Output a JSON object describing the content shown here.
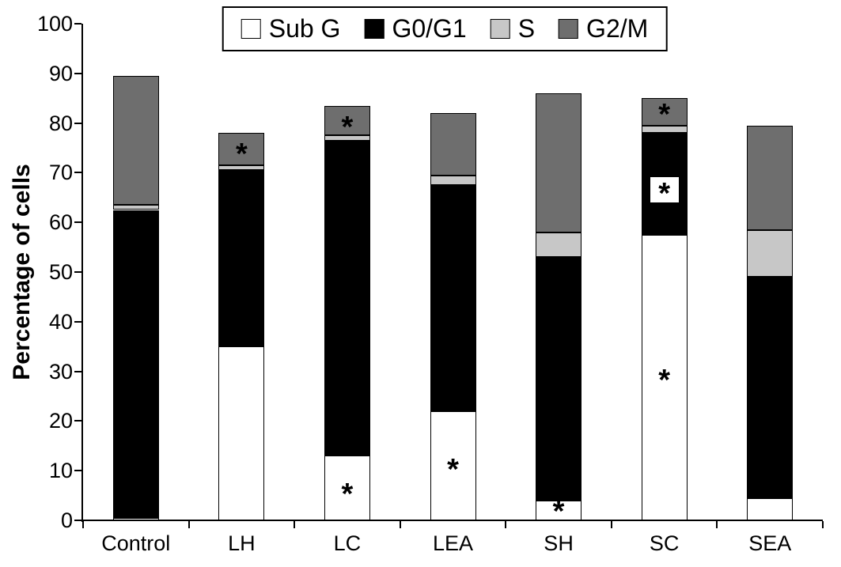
{
  "chart_data": {
    "type": "bar",
    "stacked": true,
    "title": "",
    "xlabel": "",
    "ylabel": "Percentage of cells",
    "ylim": [
      0,
      100
    ],
    "ytick_step": 10,
    "grid": false,
    "legend_position": "top",
    "categories": [
      "Control",
      "LH",
      "LC",
      "LEA",
      "SH",
      "SC",
      "SEA"
    ],
    "series": [
      {
        "name": "Sub G",
        "color": "#ffffff",
        "values": [
          0.5,
          35.0,
          13.0,
          22.0,
          4.0,
          57.5,
          4.5
        ]
      },
      {
        "name": "G0/G1",
        "color": "#000000",
        "values": [
          62.0,
          35.5,
          63.5,
          45.5,
          49.0,
          20.5,
          44.5
        ]
      },
      {
        "name": "S",
        "color": "#c7c7c7",
        "values": [
          1.0,
          1.0,
          1.0,
          2.0,
          5.0,
          1.5,
          9.5
        ]
      },
      {
        "name": "G2/M",
        "color": "#6e6e6e",
        "values": [
          26.0,
          6.5,
          6.0,
          12.5,
          28.0,
          5.5,
          21.0
        ]
      }
    ],
    "totals": [
      89.5,
      78.0,
      83.5,
      82.0,
      86.0,
      85.0,
      79.5
    ],
    "annotations": [
      {
        "category": "LH",
        "y": 74.5,
        "text": "*",
        "boxed": false
      },
      {
        "category": "LC",
        "y": 6.0,
        "text": "*",
        "boxed": false
      },
      {
        "category": "LC",
        "y": 80.0,
        "text": "*",
        "boxed": false
      },
      {
        "category": "LEA",
        "y": 11.0,
        "text": "*",
        "boxed": false
      },
      {
        "category": "SH",
        "y": 2.5,
        "text": "*",
        "boxed": false
      },
      {
        "category": "SC",
        "y": 29.0,
        "text": "*",
        "boxed": false
      },
      {
        "category": "SC",
        "y": 66.5,
        "text": "*",
        "boxed": true
      },
      {
        "category": "SC",
        "y": 82.5,
        "text": "*",
        "boxed": false
      }
    ]
  }
}
